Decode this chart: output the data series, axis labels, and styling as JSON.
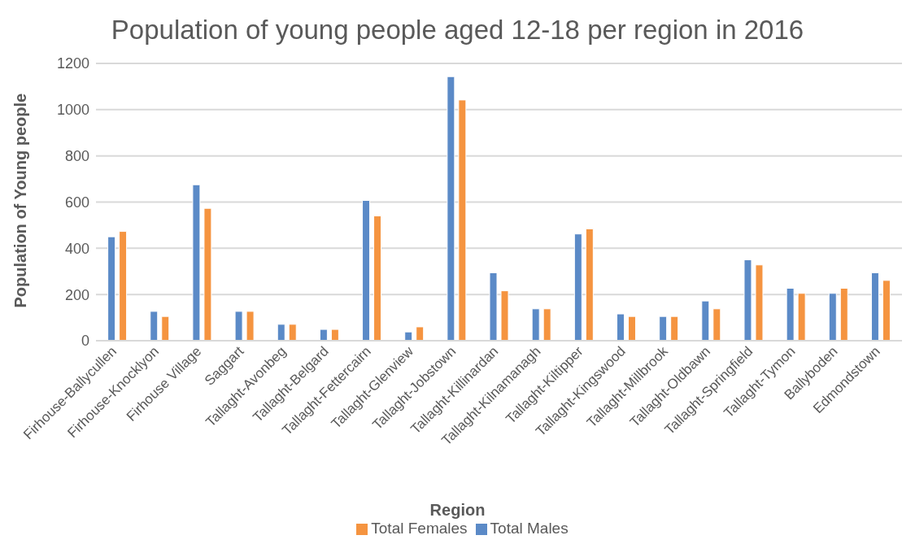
{
  "chart_data": {
    "type": "bar",
    "title": "Population of young people aged 12-18 per region in 2016",
    "xlabel": "Region",
    "ylabel": "Population of Young people",
    "categories": [
      "Firhouse-Ballycullen",
      "Firhouse-Knocklyon",
      "Firhouse Village",
      "Saggart",
      "Tallaght-Avonbeg",
      "Tallaght-Belgard",
      "Tallaght-Fettercairn",
      "Tallaght-Glenview",
      "Tallaght-Jobstown",
      "Tallaght-Killinardan",
      "Tallaght-Kilnamanagh",
      "Tallaght-Kiltipper",
      "Tallaght-Kingswood",
      "Tallaght-Millbrook",
      "Tallaght-Oldbawn",
      "Tallaght-Springfield",
      "Tallaght-Tymon",
      "Ballyboden",
      "Edmondstown"
    ],
    "series": [
      {
        "name": "Total Males",
        "color": "#5b8ac7",
        "values": [
          450,
          127,
          675,
          127,
          71,
          49,
          607,
          38,
          1143,
          294,
          138,
          462,
          116,
          105,
          172,
          350,
          227,
          205,
          294
        ]
      },
      {
        "name": "Total Females",
        "color": "#f59440",
        "values": [
          473,
          105,
          573,
          127,
          71,
          49,
          540,
          60,
          1042,
          216,
          138,
          484,
          105,
          105,
          138,
          328,
          205,
          227,
          261
        ]
      }
    ],
    "ylim": [
      0,
      1200
    ],
    "yticks": [
      0,
      200,
      400,
      600,
      800,
      1000,
      1200
    ],
    "grid": "y",
    "legend": "bottom"
  }
}
